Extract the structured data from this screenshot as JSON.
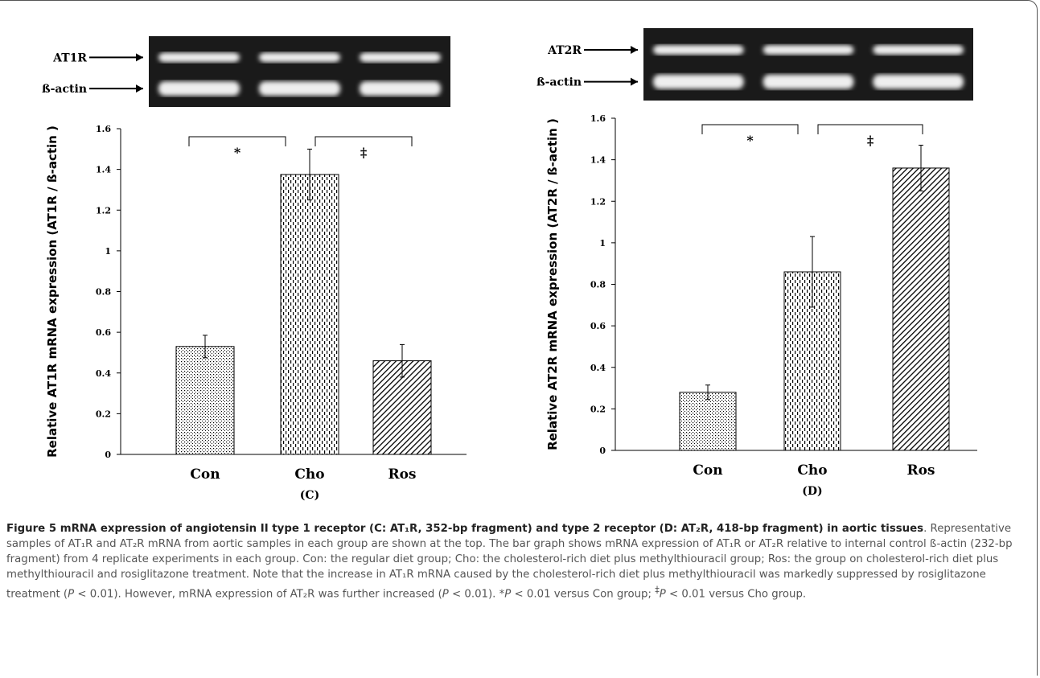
{
  "chart_data": [
    {
      "type": "bar",
      "gel_labels": [
        "AT1R",
        "ß-actin"
      ],
      "y_label": "Relative AT1R mRNA expression (AT1R / ß-actin )",
      "categories": [
        "Con",
        "Cho",
        "Ros"
      ],
      "values": [
        0.53,
        1.375,
        0.46
      ],
      "errors": [
        0.055,
        0.125,
        0.08
      ],
      "ylim": [
        0,
        1.6
      ],
      "yticks": [
        0,
        0.2,
        0.4,
        0.6,
        0.8,
        1,
        1.2,
        1.4,
        1.6
      ],
      "annotations": [
        "*",
        "‡"
      ],
      "panel_label": "(C)"
    },
    {
      "type": "bar",
      "gel_labels": [
        "AT2R",
        "ß-actin"
      ],
      "y_label": "Relative AT2R mRNA expression (AT2R / ß-actin )",
      "categories": [
        "Con",
        "Cho",
        "Ros"
      ],
      "values": [
        0.28,
        0.86,
        1.36
      ],
      "errors": [
        0.035,
        0.17,
        0.11
      ],
      "ylim": [
        0,
        1.6
      ],
      "yticks": [
        0,
        0.2,
        0.4,
        0.6,
        0.8,
        1,
        1.2,
        1.4,
        1.6
      ],
      "annotations": [
        "*",
        "‡"
      ],
      "panel_label": "(D)"
    }
  ],
  "caption": [
    "Figure 5 mRNA expression of angiotensin II type 1 receptor (C: AT₁R, 352-bp fragment) and type 2 receptor (D: AT₂R, 418-bp fragment) in aortic tissues",
    ". Representative samples of AT₁R and AT₂R mRNA from aortic samples in each group are shown at the top. The bar graph shows mRNA expression of AT₁R or AT₂R relative to internal control ß-actin (232-bp fragment) from 4 replicate experiments in each group. Con: the regular diet group; Cho: the cholesterol-rich diet plus methylthiouracil group; Ros: the group on cholesterol-rich diet plus methylthiouracil and rosiglitazone treatment. Note that the increase in AT₁R mRNA caused by the cholesterol-rich diet plus methylthiouracil was markedly suppressed by rosiglitazone treatment (",
    "P",
    " < 0.01). However, mRNA expression of AT₂R was further increased (",
    "P",
    " < 0.01). *",
    "P",
    " < 0.01 versus Con group; ",
    "‡",
    "P",
    " < 0.01 versus Cho group."
  ]
}
